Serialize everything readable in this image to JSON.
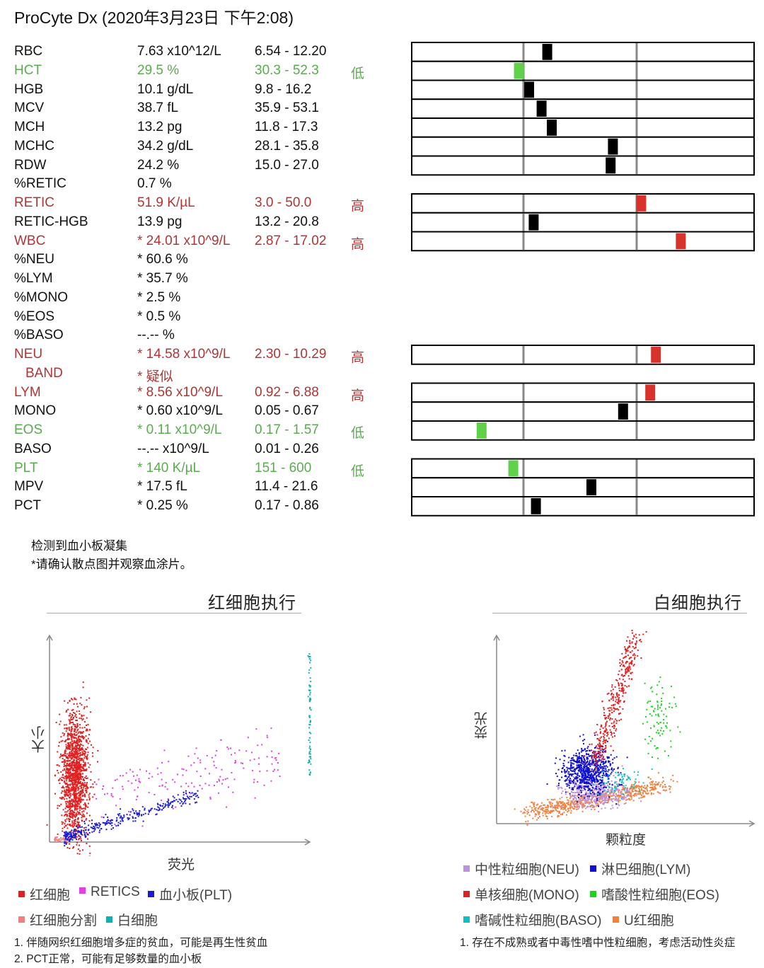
{
  "header": {
    "title": "ProCyte Dx (2020年3月23日 下午2:08)"
  },
  "results": [
    {
      "name": "RBC",
      "value": "7.63 x10^12/L",
      "ref": "6.54 - 12.20",
      "flag": "",
      "status": "normal",
      "gauge": 0.21
    },
    {
      "name": "HCT",
      "value": "29.5 %",
      "ref": "30.3 - 52.3",
      "flag": "低",
      "status": "low",
      "gauge": -0.04
    },
    {
      "name": "HGB",
      "value": "10.1 g/dL",
      "ref": "9.8 - 16.2",
      "flag": "",
      "status": "normal",
      "gauge": 0.05
    },
    {
      "name": "MCV",
      "value": "38.7 fL",
      "ref": "35.9 - 53.1",
      "flag": "",
      "status": "normal",
      "gauge": 0.16
    },
    {
      "name": "MCH",
      "value": "13.2 pg",
      "ref": "11.8 - 17.3",
      "flag": "",
      "status": "normal",
      "gauge": 0.25
    },
    {
      "name": "MCHC",
      "value": "34.2 g/dL",
      "ref": "28.1 - 35.8",
      "flag": "",
      "status": "normal",
      "gauge": 0.79
    },
    {
      "name": "RDW",
      "value": "24.2 %",
      "ref": "15.0 - 27.0",
      "flag": "",
      "status": "normal",
      "gauge": 0.77
    },
    {
      "name": "%RETIC",
      "value": "0.7 %",
      "ref": "",
      "flag": "",
      "status": "normal",
      "gauge": null
    },
    {
      "name": "RETIC",
      "value": "51.9 K/µL",
      "ref": "3.0 - 50.0",
      "flag": "高",
      "status": "high",
      "gauge": 1.04
    },
    {
      "name": "RETIC-HGB",
      "value": "13.9 pg",
      "ref": "13.2 - 20.8",
      "flag": "",
      "status": "normal",
      "gauge": 0.09
    },
    {
      "name": "WBC",
      "value": "* 24.01 x10^9/L",
      "ref": "2.87 - 17.02",
      "flag": "高",
      "status": "high",
      "gauge": 1.39
    },
    {
      "name": "%NEU",
      "value": "* 60.6 %",
      "ref": "",
      "flag": "",
      "status": "normal",
      "gauge": null
    },
    {
      "name": "%LYM",
      "value": "* 35.7 %",
      "ref": "",
      "flag": "",
      "status": "normal",
      "gauge": null
    },
    {
      "name": "%MONO",
      "value": "* 2.5 %",
      "ref": "",
      "flag": "",
      "status": "normal",
      "gauge": null
    },
    {
      "name": "%EOS",
      "value": "* 0.5 %",
      "ref": "",
      "flag": "",
      "status": "normal",
      "gauge": null
    },
    {
      "name": "%BASO",
      "value": "--.--  %",
      "ref": "",
      "flag": "",
      "status": "normal",
      "gauge": null
    },
    {
      "name": "NEU",
      "value": "* 14.58 x10^9/L",
      "ref": "2.30 - 10.29",
      "flag": "高",
      "status": "high",
      "gauge": 1.17
    },
    {
      "name": "BAND",
      "value": "* 疑似",
      "ref": "",
      "flag": "",
      "status": "high",
      "gauge": null,
      "indent": true
    },
    {
      "name": "LYM",
      "value": "* 8.56 x10^9/L",
      "ref": "0.92 - 6.88",
      "flag": "高",
      "status": "high",
      "gauge": 1.12
    },
    {
      "name": "MONO",
      "value": "* 0.60 x10^9/L",
      "ref": "0.05 - 0.67",
      "flag": "",
      "status": "normal",
      "gauge": 0.88
    },
    {
      "name": "EOS",
      "value": "* 0.11 x10^9/L",
      "ref": "0.17 - 1.57",
      "flag": "低",
      "status": "low",
      "gauge": -0.37
    },
    {
      "name": "BASO",
      "value": "--.--  x10^9/L",
      "ref": "0.01 - 0.26",
      "flag": "",
      "status": "normal",
      "gauge": null
    },
    {
      "name": "PLT",
      "value": "* 140 K/µL",
      "ref": "151 - 600",
      "flag": "低",
      "status": "low",
      "gauge": -0.09
    },
    {
      "name": "MPV",
      "value": "* 17.5 fL",
      "ref": "11.4 - 21.6",
      "flag": "",
      "status": "normal",
      "gauge": 0.6
    },
    {
      "name": "PCT",
      "value": "* 0.25 %",
      "ref": "0.17 - 0.86",
      "flag": "",
      "status": "normal",
      "gauge": 0.11
    }
  ],
  "notes": {
    "line1": "检测到血小板凝集",
    "line2": "*请确认散点图并观察血涂片。"
  },
  "rbc_plot": {
    "title": "红细胞执行",
    "xlabel": "荧光",
    "ylabel": "大小",
    "legend": [
      {
        "label": "红细胞",
        "color": "#e02020"
      },
      {
        "label": "RETICS",
        "color": "#e040e0"
      },
      {
        "label": "血小板(PLT)",
        "color": "#1a1ad0"
      },
      {
        "label": "红细胞分割",
        "color": "#f08080"
      },
      {
        "label": "白细胞",
        "color": "#10b0b0"
      }
    ],
    "footnotes": [
      "1. 伴随网织红细胞增多症的贫血，可能是再生性贫血",
      "2. PCT正常，可能有足够数量的血小板"
    ]
  },
  "wbc_plot": {
    "title": "白细胞执行",
    "xlabel": "颗粒度",
    "ylabel": "荧光",
    "legend": [
      {
        "label": "中性粒细胞(NEU)",
        "color": "#c090e0"
      },
      {
        "label": "淋巴细胞(LYM)",
        "color": "#1010d0"
      },
      {
        "label": "单核细胞(MONO)",
        "color": "#e02020"
      },
      {
        "label": "嗜酸性粒细胞(EOS)",
        "color": "#20d020"
      },
      {
        "label": "嗜碱性粒细胞(BASO)",
        "color": "#10c0c0"
      },
      {
        "label": "U红细胞",
        "color": "#f08040"
      }
    ],
    "footnotes": [
      "1. 存在不成熟或者中毒性嗜中性粒细胞，考虑活动性炎症"
    ]
  },
  "colors": {
    "normal": "#111111",
    "high": "#b03434",
    "low": "#5aab4f",
    "marker_normal": "#000000",
    "marker_high": "#d8332b",
    "marker_low": "#5fd24a"
  }
}
